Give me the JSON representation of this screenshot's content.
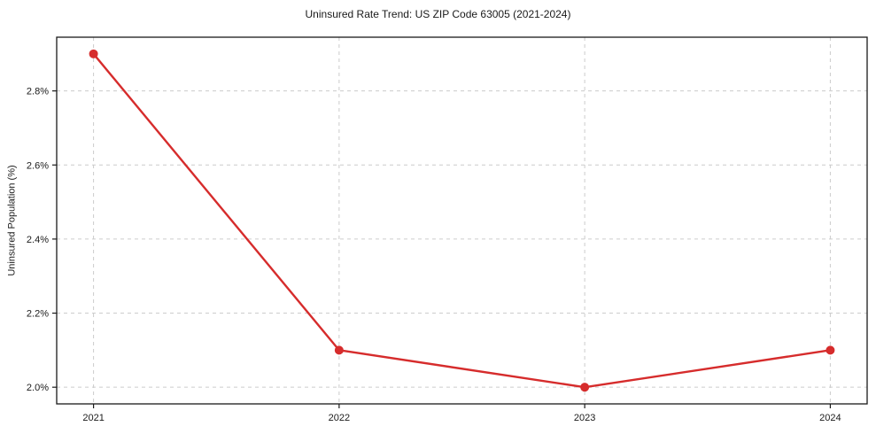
{
  "chart_data": {
    "type": "line",
    "title": "Uninsured Rate Trend: US ZIP Code 63005 (2021-2024)",
    "xlabel": "",
    "ylabel": "Uninsured Population (%)",
    "categories": [
      2021,
      2022,
      2023,
      2024
    ],
    "x_tick_labels": [
      "2021",
      "2022",
      "2023",
      "2024"
    ],
    "values": [
      2.9,
      2.1,
      2.0,
      2.1
    ],
    "y_tick_values": [
      2.0,
      2.2,
      2.4,
      2.6,
      2.8
    ],
    "y_tick_labels": [
      "2.0%",
      "2.2%",
      "2.4%",
      "2.6%",
      "2.8%"
    ],
    "ylim": [
      1.955,
      2.945
    ],
    "xlim": [
      2020.85,
      2024.15
    ],
    "grid": "both-dashed",
    "legend": "none",
    "line_color": "#d62c2c",
    "marker": "circle",
    "grid_color": "#cccccc",
    "spine_color": "#1a1a1a",
    "background_color": "#ffffff"
  }
}
